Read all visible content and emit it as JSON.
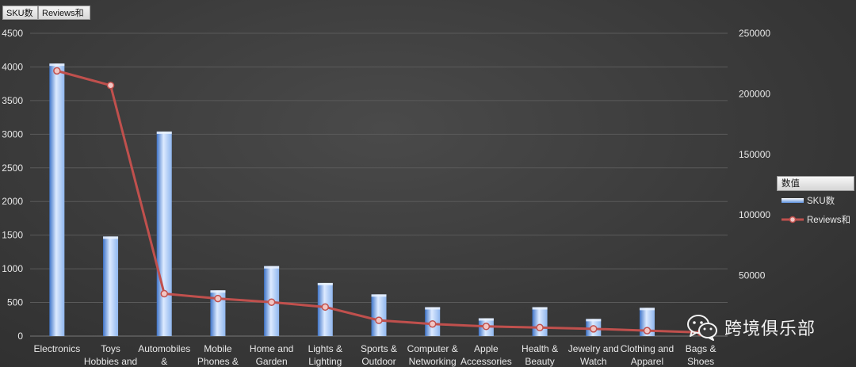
{
  "pivot_buttons": {
    "sku": "SKU数",
    "reviews": "Reviews和"
  },
  "legend": {
    "title": "数值"
  },
  "watermark": {
    "text": "跨境俱乐部",
    "icon": "wechat-icon"
  },
  "colors": {
    "bar": "#8fb6ee",
    "bar_dark": "#3f74c8",
    "line": "#c0504d",
    "marker_fill": "#f2c6c4",
    "grid": "#5a5a5a",
    "text": "#e8e8e8"
  },
  "chart_data": {
    "type": "bar",
    "categories": [
      [
        "Electronics"
      ],
      [
        "Toys",
        "Hobbies and"
      ],
      [
        "Automobiles",
        "&"
      ],
      [
        "Mobile",
        "Phones &"
      ],
      [
        "Home and",
        "Garden"
      ],
      [
        "Lights &",
        "Lighting"
      ],
      [
        "Sports &",
        "Outdoor"
      ],
      [
        "Computer &",
        "Networking"
      ],
      [
        "Apple",
        "Accessories"
      ],
      [
        "Health &",
        "Beauty"
      ],
      [
        "Jewelry and",
        "Watch"
      ],
      [
        "Clothing and",
        "Apparel"
      ],
      [
        "Bags &",
        "Shoes"
      ]
    ],
    "series": [
      {
        "name": "SKU数",
        "type": "bar",
        "axis": "left",
        "values": [
          4050,
          1480,
          3040,
          680,
          1040,
          790,
          620,
          430,
          265,
          430,
          255,
          420,
          0
        ]
      },
      {
        "name": "Reviews和",
        "type": "line",
        "axis": "right",
        "values": [
          219000,
          207000,
          35000,
          31000,
          28000,
          24000,
          13000,
          10000,
          8000,
          7000,
          6000,
          4500,
          3000
        ]
      }
    ],
    "ylim_left": [
      0,
      4500
    ],
    "yticks_left": [
      0,
      500,
      1000,
      1500,
      2000,
      2500,
      3000,
      3500,
      4000,
      4500
    ],
    "ylim_right": [
      0,
      250000
    ],
    "yticks_right": [
      50000,
      100000,
      150000,
      200000,
      250000
    ],
    "grid": true,
    "legend_position": "right"
  }
}
